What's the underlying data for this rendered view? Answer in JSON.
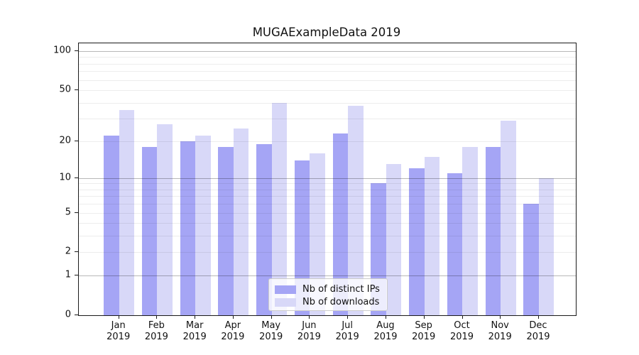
{
  "title": "MUGAExampleData 2019",
  "colors": {
    "ips": "#a5a5f5",
    "downloads": "#d8d8f8",
    "grid_major": "rgba(0,0,0,0.28)",
    "grid_minor": "rgba(0,0,0,0.07)",
    "axis": "#1a1a1a",
    "text": "#111111"
  },
  "y_axis": {
    "tick_values": [
      0,
      1,
      2,
      5,
      10,
      20,
      50,
      100
    ],
    "tick_labels": [
      "0",
      "1",
      "2",
      "5",
      "10",
      "20",
      "50",
      "100"
    ],
    "major_grid_values": [
      1,
      10,
      100
    ],
    "minor_grid_values": [
      2,
      3,
      4,
      5,
      6,
      7,
      8,
      9,
      20,
      30,
      40,
      50,
      60,
      70,
      80,
      90
    ],
    "scale": "log1p"
  },
  "x_axis": {
    "year": "2019"
  },
  "legend": {
    "entries": [
      {
        "series": "ips",
        "label": "Nb of distinct IPs"
      },
      {
        "series": "downloads",
        "label": "Nb of downloads"
      }
    ]
  },
  "chart_data": {
    "type": "bar",
    "title": "MUGAExampleData 2019",
    "categories": [
      "Jan",
      "Feb",
      "Mar",
      "Apr",
      "May",
      "Jun",
      "Jul",
      "Aug",
      "Sep",
      "Oct",
      "Nov",
      "Dec"
    ],
    "category_year": "2019",
    "series": [
      {
        "key": "ips",
        "name": "Nb of distinct IPs",
        "values": [
          22,
          18,
          20,
          18,
          19,
          14,
          23,
          9,
          12,
          11,
          18,
          6
        ]
      },
      {
        "key": "downloads",
        "name": "Nb of downloads",
        "values": [
          35,
          27,
          22,
          25,
          40,
          16,
          38,
          13,
          15,
          18,
          29,
          10
        ]
      }
    ],
    "xlabel": "",
    "ylabel": "",
    "yscale": "log1p",
    "ylim": [
      0,
      115
    ],
    "grid": true,
    "legend_position": "lower center"
  }
}
